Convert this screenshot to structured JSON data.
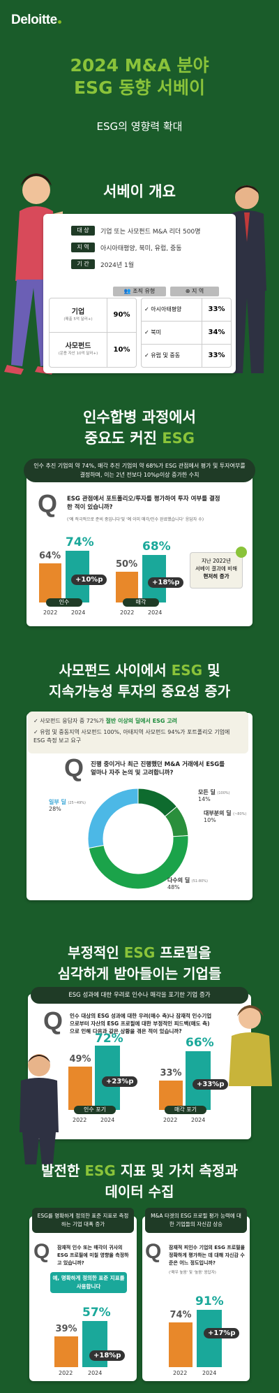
{
  "brand": "Deloitte",
  "header": {
    "title_line1": "2024 M&A 분야",
    "title_line2": "ESG 동향 서베이",
    "subtitle": "ESG의 영향력 확대"
  },
  "overview": {
    "title": "서베이 개요",
    "rows": [
      {
        "label": "대 상",
        "value": "기업 또는 사모펀드 M&A 리더 500명"
      },
      {
        "label": "지 역",
        "value": "아시아태평양, 북미, 유럽, 중동"
      },
      {
        "label": "기 간",
        "value": "2024년 1월"
      }
    ],
    "org_header": "조직 유형",
    "org": [
      {
        "name": "기업",
        "note": "(매출 5억 달러+)",
        "pct": "90%"
      },
      {
        "name": "사모펀드",
        "note": "(운용 자산 10억 달러+)",
        "pct": "10%"
      }
    ],
    "region_header": "지 역",
    "regions": [
      {
        "name": "아시아태평양",
        "pct": "33%"
      },
      {
        "name": "북미",
        "pct": "34%"
      },
      {
        "name": "유럽 및 중동",
        "pct": "33%"
      }
    ]
  },
  "section1": {
    "title_line1": "인수합병 과정에서",
    "title_line2_pre": "중요도 커진 ",
    "title_line2_hl": "ESG",
    "banner": "인수 추진 기업의 약 74%, 매각 추진 기업의 약 68%가 ESG 관점에서 평가 및 투자여부를 결정하며, 이는 2년 전보다 10%p이상 증가한 수치",
    "q_mark": "Q",
    "question": "ESG 관점에서 포트폴리오/투자를 평가하여 투자 여부를 결정한 적이 있습니까?",
    "note": "('예 적극적으로 준비 중입니다'및 '예 이미 매각/인수 완료했습니다' 응답자 수)",
    "groups": [
      {
        "label": "인수",
        "v2022": "64%",
        "v2024": "74%",
        "delta": "+10%p"
      },
      {
        "label": "매각",
        "v2022": "50%",
        "v2024": "68%",
        "delta": "+18%p"
      }
    ],
    "years": [
      "2022",
      "2024"
    ],
    "callout_line1": "지난 2022년",
    "callout_line2": "서베이 결과에 비해",
    "callout_line3": "현저히 증가"
  },
  "section2": {
    "title_line1_pre": "사모펀드 사이에서 ",
    "title_line1_hl": "ESG",
    "title_line1_post": " 및",
    "title_line2": "지속가능성 투자의 중요성 증가",
    "bullet1_pre": "사모펀드 응답자 중 72%가 ",
    "bullet1_hl": "절반 이상의 딜에서 ESG 고려",
    "bullet2": "유럽 및 중동지역 사모펀드 100%, 아태지역 사모펀드 94%가 포트폴리오 기업에 ESG 측정 보고 요구",
    "q_mark": "Q",
    "question": "진행 중이거나 최근 진행했던 M&A 거래에서 ESG를 얼마나 자주 논의 및 고려합니까?",
    "donut": [
      {
        "label": "모든 딜",
        "range": "(100%)",
        "pct": "14%",
        "value": 14,
        "color": "#0e6b2e"
      },
      {
        "label": "대부분의 딜",
        "range": "(~80%)",
        "pct": "10%",
        "value": 10,
        "color": "#2a8f3c"
      },
      {
        "label": "다수의 딜",
        "range": "(51-80%)",
        "pct": "48%",
        "value": 48,
        "color": "#1ba34a"
      },
      {
        "label": "일부 딜",
        "range": "(25~49%)",
        "pct": "28%",
        "value": 28,
        "color": "#4cb8e6"
      }
    ]
  },
  "section3": {
    "title_line1_pre": "부정적인 ",
    "title_line1_hl": "ESG",
    "title_line1_post": " 프로필을",
    "title_line2": "심각하게 받아들이는 기업들",
    "banner": "ESG 성과에 대한 우려로 인수나 매각을 포기한 기업 증가",
    "q_mark": "Q",
    "question": "인수 대상의 ESG 성과에 대한 우려(매수 측)나 잠재적 인수기업으로부터 자산의 ESG 프로필에 대한 부정적인 피드백(매도 측)으로 인해 다음과 같은 상황을 겪은 적이 있습니까?",
    "groups": [
      {
        "label": "인수 포기",
        "v2022": "49%",
        "v2024": "72%",
        "delta": "+23%p"
      },
      {
        "label": "매각 포기",
        "v2022": "33%",
        "v2024": "66%",
        "delta": "+33%p"
      }
    ],
    "years": [
      "2022",
      "2024"
    ]
  },
  "section4": {
    "title_line1_pre": "발전한 ",
    "title_line1_hl": "ESG",
    "title_line1_post": " 지표 및 가치 측정과",
    "title_line2": "데이터 수집",
    "left": {
      "header": "ESG를 명확하게 정의한 표준 지표로 측정하는 기업 대폭 증가",
      "q_mark": "Q",
      "question": "잠재적 인수 또는 매각이 귀사의 ESG 프로필에 미칠 영향을 측정하고 있습니까?",
      "callout": "예, 명확하게 정의한 표준 지표를 사용합니다",
      "v2022": "39%",
      "v2024": "57%",
      "delta": "+18%p"
    },
    "right": {
      "header": "M&A 타겟의 ESG 프로필 평가 능력에 대한 기업들의 자신감 상승",
      "q_mark": "Q",
      "question": "잠재적 피인수 기업의 ESG 프로필을 정확하게 평가하는 데 대해 자신감 수준은 어느 정도입니까?",
      "note": "('매우 높음' 및 '높음' 응답자)",
      "v2022": "74%",
      "v2024": "91%",
      "delta": "+17%p"
    },
    "years": [
      "2022",
      "2024"
    ]
  }
}
